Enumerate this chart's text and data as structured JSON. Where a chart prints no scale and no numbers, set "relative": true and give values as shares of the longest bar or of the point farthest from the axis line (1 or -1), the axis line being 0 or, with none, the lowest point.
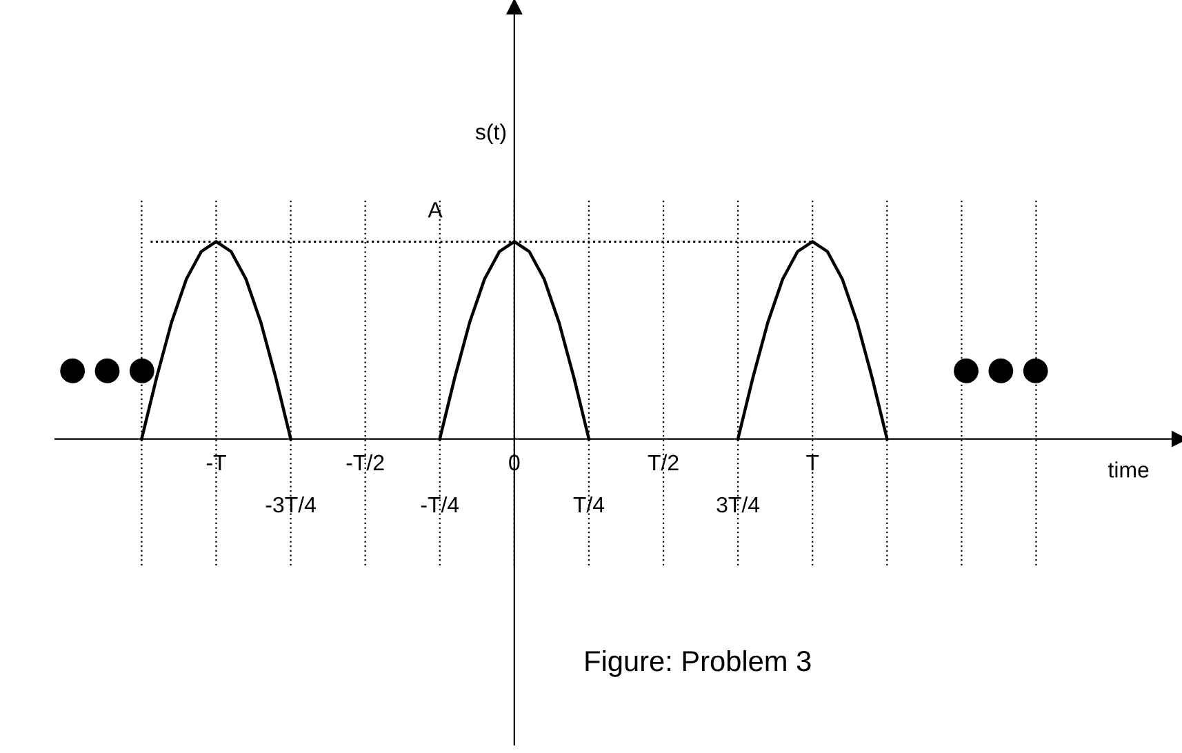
{
  "chart_data": {
    "type": "line",
    "relative": true,
    "color": "#000000",
    "categories": [
      null,
      null,
      null,
      null,
      null,
      "-T",
      null,
      null,
      null,
      null,
      "-3T/4",
      null,
      null,
      null,
      null,
      "-T/2",
      null,
      null,
      null,
      null,
      "-T/4",
      null,
      null,
      null,
      null,
      "0",
      null,
      null,
      null,
      null,
      "T/4",
      null,
      null,
      null,
      null,
      "T/2",
      null,
      null,
      null,
      null,
      "3T/4",
      null,
      null,
      null,
      null,
      "T",
      null,
      null,
      null,
      null,
      null,
      null,
      null,
      null,
      null,
      null,
      null,
      null,
      null,
      null,
      null
    ],
    "values": [
      0,
      0.31,
      0.59,
      0.81,
      0.95,
      1,
      0.95,
      0.81,
      0.59,
      0.31,
      0,
      null,
      null,
      null,
      null,
      null,
      null,
      null,
      null,
      null,
      0,
      0.31,
      0.59,
      0.81,
      0.95,
      1,
      0.95,
      0.81,
      0.59,
      0.31,
      0,
      null,
      null,
      null,
      null,
      null,
      null,
      null,
      null,
      null,
      0,
      0.31,
      0.59,
      0.81,
      0.95,
      1,
      0.95,
      0.81,
      0.59,
      0.31,
      0,
      null,
      null,
      null,
      null,
      null,
      null,
      null,
      null,
      null,
      null
    ],
    "grid": "x",
    "xlabel": "time",
    "ylabel": "s(t)",
    "ref_lines": [
      {
        "axis": "y",
        "value": 1,
        "label": "A",
        "line_style": "dotted"
      }
    ],
    "annotations": [
      "●●●",
      "●●●",
      "Figure: Problem 3"
    ]
  }
}
